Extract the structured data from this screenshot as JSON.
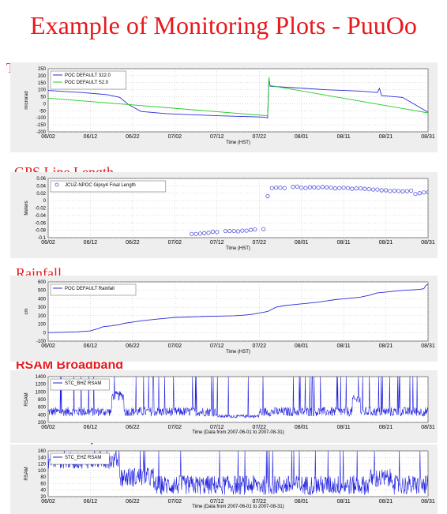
{
  "page": {
    "title": "Example of Monitoring Plots - PuuOo",
    "sections": [
      "Tilt",
      "GPS Line Length",
      "Rainfall",
      "RSAM Broadband",
      "RSAM short period"
    ]
  },
  "chart_data": [
    {
      "type": "line",
      "section": "Tilt",
      "ylabel": "microrad",
      "xlabel": "Time (HST)",
      "x_ticks": [
        "06/02",
        "06/12",
        "06/22",
        "07/02",
        "07/12",
        "07/22",
        "08/01",
        "08/11",
        "08/21",
        "08/31"
      ],
      "y_ticks": [
        250,
        200,
        150,
        100,
        50,
        0,
        -50,
        -100,
        -150,
        -200
      ],
      "ylim": [
        -200,
        250
      ],
      "xlim": [
        0,
        90
      ],
      "grid": true,
      "legend_position": "top-left",
      "series": [
        {
          "name": "POC DEFAULT 322.0",
          "color": "#2b2bd8",
          "points": [
            [
              0,
              95
            ],
            [
              8,
              80
            ],
            [
              14,
              65
            ],
            [
              17,
              45
            ],
            [
              19,
              -5
            ],
            [
              22,
              -55
            ],
            [
              28,
              -70
            ],
            [
              40,
              -85
            ],
            [
              51,
              -95
            ],
            [
              52,
              -100
            ],
            [
              52.3,
              170
            ],
            [
              52.6,
              125
            ],
            [
              58,
              115
            ],
            [
              66,
              100
            ],
            [
              74,
              90
            ],
            [
              78,
              80
            ],
            [
              78.5,
              110
            ],
            [
              79,
              58
            ],
            [
              84,
              45
            ],
            [
              90,
              -60
            ]
          ]
        },
        {
          "name": "POC DEFAULT S2.0",
          "color": "#22cc22",
          "points": [
            [
              0,
              40
            ],
            [
              52,
              -85
            ],
            [
              52.3,
              190
            ],
            [
              52.6,
              130
            ],
            [
              90,
              -65
            ]
          ]
        }
      ]
    },
    {
      "type": "scatter",
      "section": "GPS Line Length",
      "ylabel": "Meters",
      "xlabel": "Time (HST)",
      "x_ticks": [
        "06/02",
        "06/12",
        "06/22",
        "07/02",
        "07/12",
        "07/22",
        "08/01",
        "08/11",
        "08/21",
        "08/31"
      ],
      "y_ticks": [
        0.06,
        0.04,
        0.02,
        0,
        -0.02,
        -0.04,
        -0.06,
        -0.08,
        -0.1
      ],
      "ylim": [
        -0.1,
        0.06
      ],
      "xlim": [
        0,
        90
      ],
      "grid": true,
      "legend_position": "top-left",
      "series": [
        {
          "name": "JCUZ-NPOC Gipsy4 Final Length",
          "color": "#5555dd",
          "points": [
            [
              34,
              -0.09
            ],
            [
              35,
              -0.09
            ],
            [
              36,
              -0.089
            ],
            [
              37,
              -0.088
            ],
            [
              38,
              -0.087
            ],
            [
              39,
              -0.084
            ],
            [
              40,
              -0.085
            ],
            [
              42,
              -0.082
            ],
            [
              43,
              -0.082
            ],
            [
              44,
              -0.082
            ],
            [
              45,
              -0.083
            ],
            [
              46,
              -0.081
            ],
            [
              47,
              -0.081
            ],
            [
              48,
              -0.079
            ],
            [
              49,
              -0.078
            ],
            [
              51,
              -0.077
            ],
            [
              52,
              0.012
            ],
            [
              53,
              0.034
            ],
            [
              54,
              0.035
            ],
            [
              55,
              0.035
            ],
            [
              56,
              0.034
            ],
            [
              58,
              0.037
            ],
            [
              59,
              0.038
            ],
            [
              60,
              0.035
            ],
            [
              61,
              0.034
            ],
            [
              62,
              0.036
            ],
            [
              63,
              0.036
            ],
            [
              64,
              0.035
            ],
            [
              65,
              0.037
            ],
            [
              66,
              0.036
            ],
            [
              67,
              0.035
            ],
            [
              68,
              0.033
            ],
            [
              69,
              0.034
            ],
            [
              70,
              0.035
            ],
            [
              71,
              0.034
            ],
            [
              72,
              0.032
            ],
            [
              73,
              0.033
            ],
            [
              74,
              0.033
            ],
            [
              75,
              0.032
            ],
            [
              76,
              0.031
            ],
            [
              77,
              0.03
            ],
            [
              78,
              0.03
            ],
            [
              79,
              0.028
            ],
            [
              80,
              0.028
            ],
            [
              81,
              0.026
            ],
            [
              82,
              0.027
            ],
            [
              83,
              0.026
            ],
            [
              84,
              0.025
            ],
            [
              85,
              0.026
            ],
            [
              86,
              0.027
            ],
            [
              87,
              0.018
            ],
            [
              88,
              0.02
            ],
            [
              89,
              0.022
            ],
            [
              90,
              0.023
            ]
          ]
        }
      ]
    },
    {
      "type": "line",
      "section": "Rainfall",
      "ylabel": "cm",
      "xlabel": "Time (HST)",
      "x_ticks": [
        "06/02",
        "06/12",
        "06/22",
        "07/02",
        "07/12",
        "07/22",
        "08/01",
        "08/11",
        "08/21",
        "08/31"
      ],
      "y_ticks": [
        600,
        500,
        400,
        300,
        200,
        100,
        0,
        -100
      ],
      "ylim": [
        -100,
        600
      ],
      "xlim": [
        0,
        90
      ],
      "grid": true,
      "legend_position": "top-left",
      "series": [
        {
          "name": "POC DEFAULT Rainfall",
          "color": "#2b2bd8",
          "points": [
            [
              0,
              0
            ],
            [
              4,
              5
            ],
            [
              7,
              10
            ],
            [
              10,
              20
            ],
            [
              12,
              50
            ],
            [
              13,
              70
            ],
            [
              15,
              80
            ],
            [
              17,
              95
            ],
            [
              18,
              110
            ],
            [
              20,
              125
            ],
            [
              22,
              140
            ],
            [
              24,
              150
            ],
            [
              26,
              160
            ],
            [
              28,
              170
            ],
            [
              30,
              180
            ],
            [
              33,
              185
            ],
            [
              36,
              190
            ],
            [
              40,
              195
            ],
            [
              44,
              200
            ],
            [
              46,
              205
            ],
            [
              48,
              215
            ],
            [
              50,
              230
            ],
            [
              52,
              250
            ],
            [
              54,
              300
            ],
            [
              56,
              320
            ],
            [
              58,
              330
            ],
            [
              62,
              350
            ],
            [
              64,
              360
            ],
            [
              66,
              375
            ],
            [
              68,
              390
            ],
            [
              70,
              400
            ],
            [
              72,
              410
            ],
            [
              74,
              420
            ],
            [
              76,
              440
            ],
            [
              78,
              470
            ],
            [
              80,
              480
            ],
            [
              82,
              490
            ],
            [
              84,
              500
            ],
            [
              86,
              505
            ],
            [
              88,
              510
            ],
            [
              89,
              520
            ],
            [
              89.5,
              560
            ],
            [
              90,
              570
            ]
          ]
        }
      ]
    },
    {
      "type": "line",
      "section": "RSAM Broadband",
      "ylabel": "RSAM",
      "xlabel": "Time (Data from 2007-06-01 to 2007-08-31)",
      "x_ticks": [
        "06/02",
        "06/12",
        "06/22",
        "07/02",
        "07/12",
        "07/22",
        "08/01",
        "08/11",
        "08/21",
        "08/31"
      ],
      "y_ticks": [
        1400,
        1200,
        1000,
        800,
        600,
        400,
        200
      ],
      "ylim": [
        200,
        1400
      ],
      "xlim": [
        0,
        90
      ],
      "grid": true,
      "legend_position": "top-left",
      "series": [
        {
          "name": "STC_BHZ RSAM",
          "color": "#2020e0"
        }
      ]
    },
    {
      "type": "line",
      "section": "RSAM short period",
      "ylabel": "RSAM",
      "xlabel": "Time (Data from 2007-06-01 to 2007-08-31)",
      "x_ticks": [
        "06/02",
        "06/12",
        "06/22",
        "07/02",
        "07/12",
        "07/22",
        "08/01",
        "08/11",
        "08/21",
        "08/31"
      ],
      "y_ticks": [
        160,
        140,
        120,
        100,
        80,
        60,
        40,
        20
      ],
      "ylim": [
        20,
        160
      ],
      "xlim": [
        0,
        90
      ],
      "grid": true,
      "legend_position": "top-left",
      "series": [
        {
          "name": "STC_EHZ RSAM",
          "color": "#2020e0"
        }
      ]
    }
  ]
}
